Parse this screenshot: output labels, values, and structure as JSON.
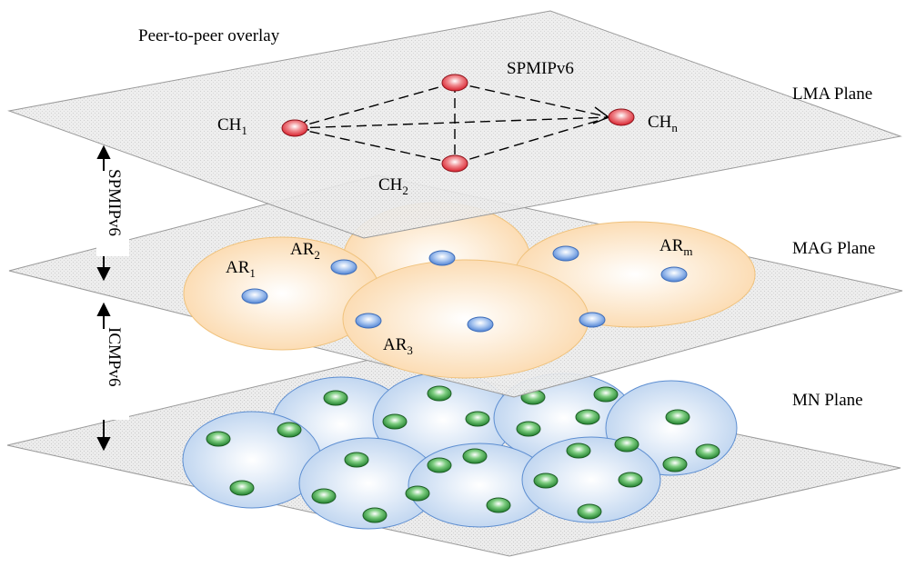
{
  "title": "Peer-to-peer overlay",
  "planes": {
    "lma": "LMA Plane",
    "mag": "MAG Plane",
    "mn": "MN Plane"
  },
  "protocols": {
    "top": "SPMIPv6",
    "side_upper": "SPMIPv6",
    "side_lower": "ICMPv6"
  },
  "nodes": {
    "ch1": {
      "base": "CH",
      "sub": "1"
    },
    "ch2": {
      "base": "CH",
      "sub": "2"
    },
    "chn": {
      "base": "CH",
      "sub": "n"
    }
  },
  "access_routers": {
    "ar1": {
      "base": "AR",
      "sub": "1"
    },
    "ar2": {
      "base": "AR",
      "sub": "2"
    },
    "ar3": {
      "base": "AR",
      "sub": "3"
    },
    "arm": {
      "base": "AR",
      "sub": "m"
    }
  },
  "colors": {
    "plane_fill": "#e9e9e9",
    "plane_stroke": "#9a9a9a",
    "router_node": "#e0313a",
    "ar_area": "#fde6c8",
    "ar_area_stroke": "#f0c27c",
    "ar_node": "#6b98db",
    "mn_area": "#cfe0f4",
    "mn_area_stroke": "#5d8ed1",
    "mn_node": "#2f9a3a"
  }
}
